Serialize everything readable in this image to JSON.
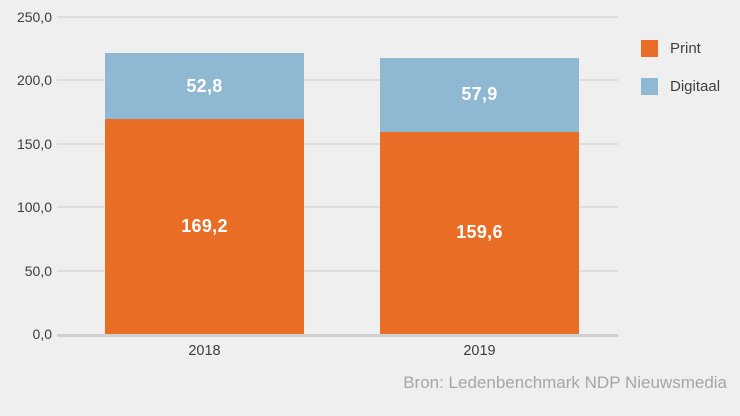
{
  "chart_data": {
    "type": "bar",
    "stacked": true,
    "categories": [
      "2018",
      "2019"
    ],
    "series": [
      {
        "name": "Print",
        "color": "#e96d24",
        "values": [
          169.2,
          159.6
        ],
        "labels": [
          "169,2",
          "159,6"
        ]
      },
      {
        "name": "Digitaal",
        "color": "#8fb8d2",
        "values": [
          52.8,
          57.9
        ],
        "labels": [
          "52,8",
          "57,9"
        ]
      }
    ],
    "ylim": [
      0,
      250
    ],
    "yticks": [
      {
        "value": 0,
        "label": "0,0"
      },
      {
        "value": 50,
        "label": "50,0"
      },
      {
        "value": 100,
        "label": "100,0"
      },
      {
        "value": 150,
        "label": "150,0"
      },
      {
        "value": 200,
        "label": "200,0"
      },
      {
        "value": 250,
        "label": "250,0"
      }
    ],
    "grid": true,
    "legend_position": "top-right"
  },
  "source": {
    "label": "Bron: Ledenbenchmark NDP Nieuwsmedia"
  },
  "colors": {
    "background": "#efefef",
    "gridline": "#dddddd",
    "axis_baseline": "#d0d0d0",
    "tick_text": "#3d3d3d",
    "value_text": "#ffffff",
    "source_text": "#a6a6a6"
  }
}
